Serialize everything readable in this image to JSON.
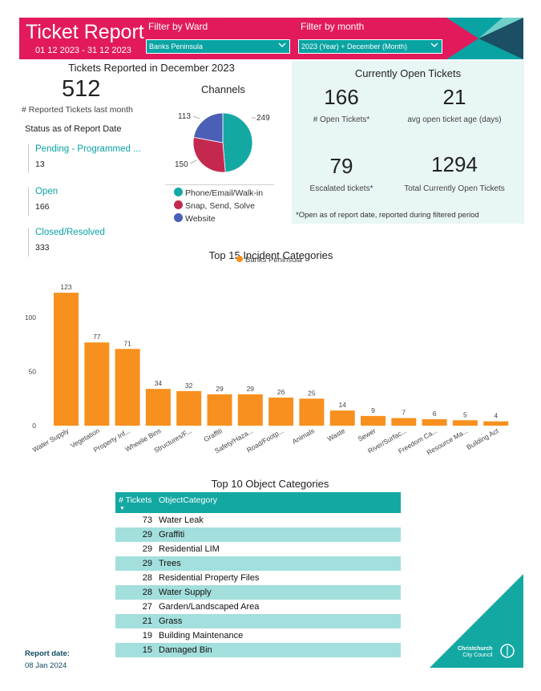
{
  "header": {
    "title": "Ticket Report",
    "date_range": "01 12 2023 - 31 12 2023",
    "ward_label": "Filter by Ward",
    "ward_value": "Banks Peninsula",
    "month_label": "Filter by month",
    "month_value": "2023 (Year) + December (Month)"
  },
  "summary": {
    "title": "Tickets Reported in December 2023",
    "total": "512",
    "total_label": "# Reported Tickets last month",
    "status_title": "Status as of Report Date",
    "statuses": [
      {
        "name": "Pending - Programmed ...",
        "value": "13"
      },
      {
        "name": "Open",
        "value": "166"
      },
      {
        "name": "Closed/Resolved",
        "value": "333"
      }
    ]
  },
  "channels": {
    "title": "Channels",
    "labels": [
      "249",
      "150",
      "113"
    ],
    "legend": [
      {
        "name": "Phone/Email/Walk-in",
        "value": 249,
        "color": "#14a8a3"
      },
      {
        "name": "Snap, Send, Solve",
        "value": 150,
        "color": "#c4284e"
      },
      {
        "name": "Website",
        "value": 113,
        "color": "#4a5fb5"
      }
    ]
  },
  "open_tickets": {
    "title": "Currently Open Tickets",
    "open_count": "166",
    "open_label": "# Open Tickets*",
    "avg_age": "21",
    "avg_age_label": "avg open ticket age (days)",
    "escalated": "79",
    "escalated_label": "Escalated tickets*",
    "total_open": "1294",
    "total_open_label": "Total Currently Open Tickets",
    "note": "*Open as of report date, reported during filtered period"
  },
  "chart_data": {
    "type": "bar",
    "title": "Top 15 Incident Categories",
    "legend": "Banks Peninsula",
    "color": "#f7901e",
    "categories": [
      "Water Supply",
      "Vegetation",
      "Property Inf...",
      "Wheelie Bins",
      "Structures/F...",
      "Graffiti",
      "Safety/Haza...",
      "Road/Footp...",
      "Animals",
      "Waste",
      "Sewer",
      "River/Surfac...",
      "Freedom Ca...",
      "Resource Ma...",
      "Building Act"
    ],
    "values": [
      123,
      77,
      71,
      34,
      32,
      29,
      29,
      26,
      25,
      14,
      9,
      7,
      6,
      5,
      4
    ],
    "yticks": [
      0,
      50,
      100
    ],
    "ylim": [
      0,
      135
    ],
    "grid": false
  },
  "objects": {
    "title": "Top 10 Object Categories",
    "col_count": "# Tickets",
    "col_name": "ObjectCategory",
    "sort_icon": "▼",
    "rows": [
      {
        "n": "73",
        "t": "Water Leak"
      },
      {
        "n": "29",
        "t": "Graffiti"
      },
      {
        "n": "29",
        "t": "Residential LIM"
      },
      {
        "n": "29",
        "t": "Trees"
      },
      {
        "n": "28",
        "t": "Residential Property Files"
      },
      {
        "n": "28",
        "t": "Water Supply"
      },
      {
        "n": "27",
        "t": "Garden/Landscaped Area"
      },
      {
        "n": "21",
        "t": "Grass"
      },
      {
        "n": "19",
        "t": "Building Maintenance"
      },
      {
        "n": "15",
        "t": "Damaged Bin"
      }
    ]
  },
  "footer": {
    "report_label": "Report date:",
    "report_date": "08 Jan 2024",
    "logo_line1": "Christchurch",
    "logo_line2": "City Council"
  }
}
